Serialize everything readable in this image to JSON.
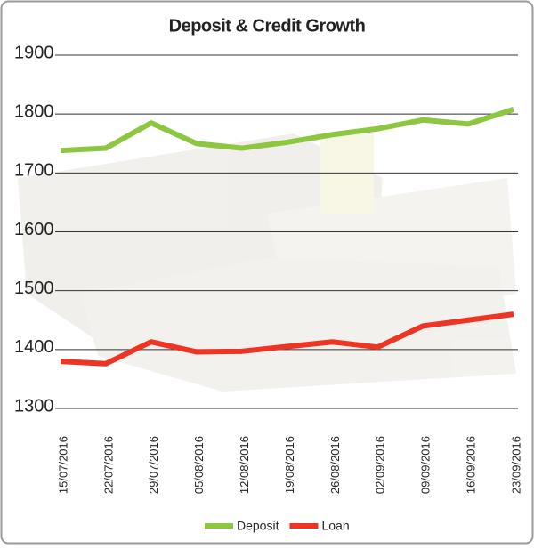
{
  "chart_data": {
    "type": "line",
    "title": "Deposit & Credit Growth",
    "categories": [
      "15/07/2016",
      "22/07/2016",
      "29/07/2016",
      "05/08/2016",
      "12/08/2016",
      "19/08/2016",
      "26/08/2016",
      "02/09/2016",
      "09/09/2016",
      "16/09/2016",
      "23/09/2016"
    ],
    "series": [
      {
        "name": "Deposit",
        "color": "#8dc63f",
        "values": [
          1738,
          1742,
          1785,
          1750,
          1742,
          1752,
          1765,
          1775,
          1790,
          1783,
          1808
        ]
      },
      {
        "name": "Loan",
        "color": "#ee3524",
        "values": [
          1380,
          1376,
          1413,
          1396,
          1397,
          1405,
          1413,
          1404,
          1440,
          1450,
          1460
        ]
      }
    ],
    "ylim": [
      1300,
      1900
    ],
    "yticks": [
      1300,
      1400,
      1500,
      1600,
      1700,
      1800,
      1900
    ],
    "grid": true,
    "legend": "bottom"
  }
}
